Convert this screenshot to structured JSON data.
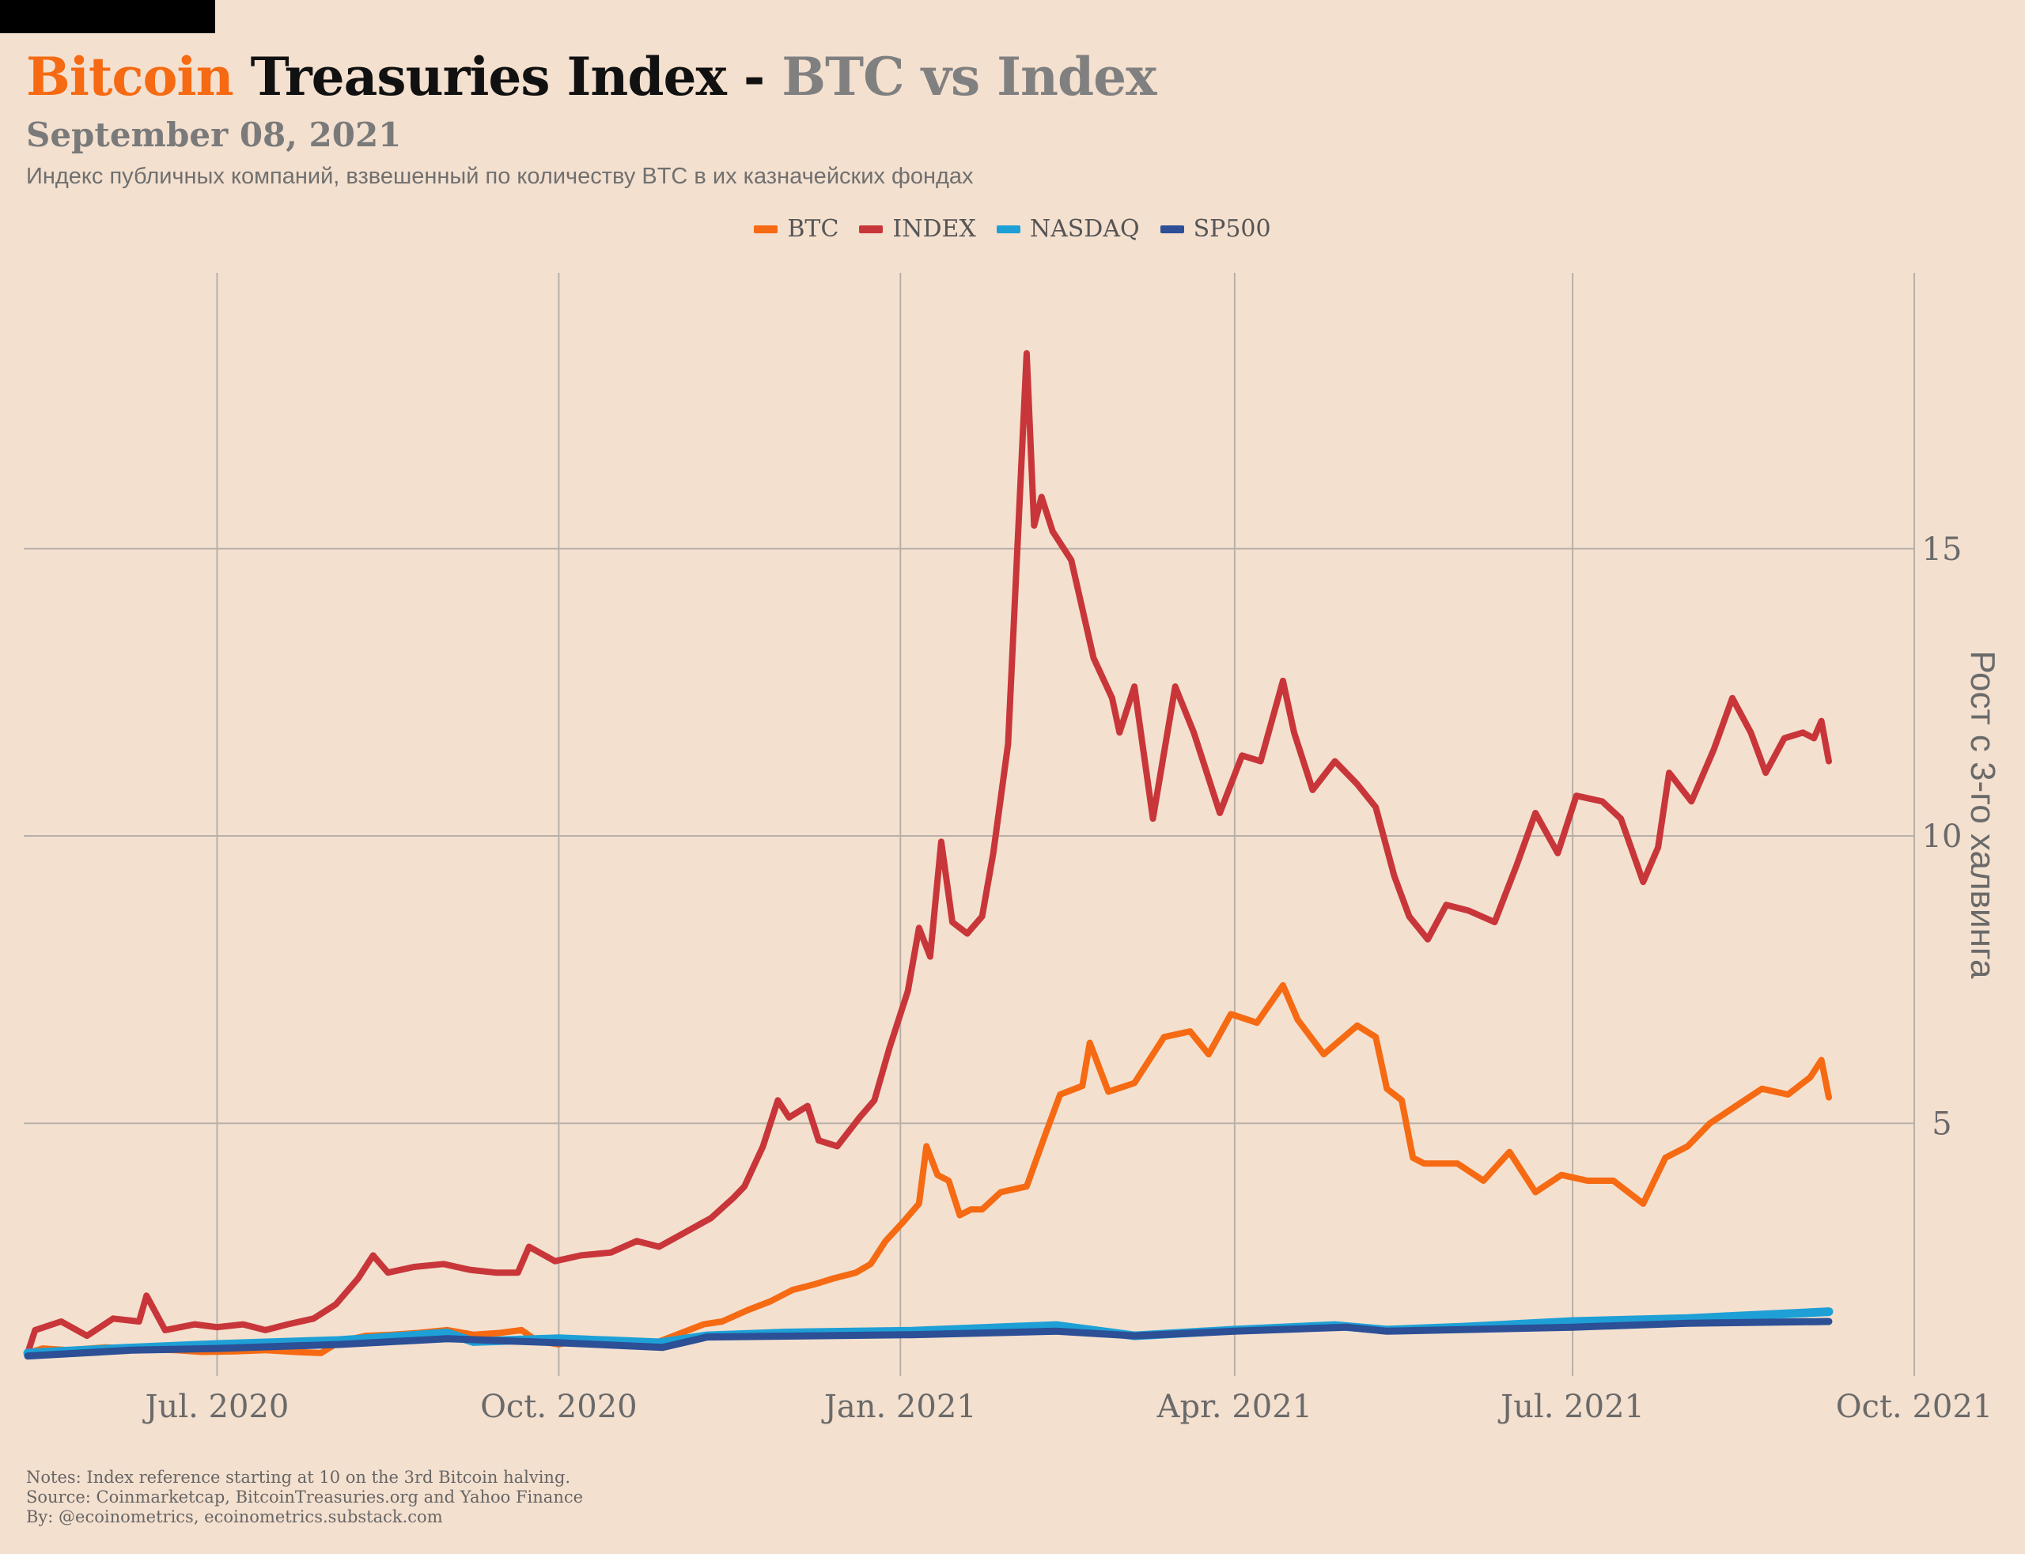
{
  "header": {
    "title_part1": "Bitcoin",
    "title_part2": "Treasuries Index -",
    "title_part3": "BTC vs Index",
    "date": "September 08, 2021",
    "subtitle": "Индекс публичных компаний, взвешенный по количеству BTC в их казначейских фондах"
  },
  "colors": {
    "background": "#f4e0cf",
    "btc": "#f56a12",
    "index": "#c8363a",
    "nasdaq": "#1ea0d6",
    "sp500": "#2c4f96",
    "grid": "#b8b0a8"
  },
  "chart_data": {
    "type": "line",
    "title": "Bitcoin Treasuries Index - BTC vs Index",
    "xlabel": "",
    "ylabel": "Рост с 3-го халвинга",
    "x_range": [
      "2020-05-11",
      "2021-10-01"
    ],
    "ylim": [
      0.6,
      19.8
    ],
    "y_ticks": [
      5,
      10,
      15
    ],
    "x_ticks": [
      {
        "date": "2020-07-01",
        "label": "Jul. 2020"
      },
      {
        "date": "2020-10-01",
        "label": "Oct. 2020"
      },
      {
        "date": "2021-01-01",
        "label": "Jan. 2021"
      },
      {
        "date": "2021-04-01",
        "label": "Apr. 2021"
      },
      {
        "date": "2021-07-01",
        "label": "Jul. 2021"
      },
      {
        "date": "2021-10-01",
        "label": "Oct. 2021"
      }
    ],
    "y_axis_side": "right",
    "grid": true,
    "legend_position": "top-center",
    "series": [
      {
        "name": "BTC",
        "color": "#f56a12",
        "points": [
          [
            "2020-05-11",
            1.0
          ],
          [
            "2020-05-15",
            1.08
          ],
          [
            "2020-05-22",
            1.05
          ],
          [
            "2020-06-01",
            1.1
          ],
          [
            "2020-06-10",
            1.07
          ],
          [
            "2020-06-20",
            1.05
          ],
          [
            "2020-06-27",
            1.02
          ],
          [
            "2020-07-06",
            1.03
          ],
          [
            "2020-07-14",
            1.05
          ],
          [
            "2020-07-22",
            1.02
          ],
          [
            "2020-07-29",
            1.0
          ],
          [
            "2020-08-03",
            1.2
          ],
          [
            "2020-08-10",
            1.3
          ],
          [
            "2020-08-17",
            1.32
          ],
          [
            "2020-08-24",
            1.35
          ],
          [
            "2020-09-01",
            1.4
          ],
          [
            "2020-09-08",
            1.32
          ],
          [
            "2020-09-15",
            1.35
          ],
          [
            "2020-09-21",
            1.4
          ],
          [
            "2020-09-25",
            1.22
          ],
          [
            "2020-10-01",
            1.15
          ],
          [
            "2020-10-08",
            1.25
          ],
          [
            "2020-10-14",
            1.2
          ],
          [
            "2020-10-21",
            1.18
          ],
          [
            "2020-10-28",
            1.2
          ],
          [
            "2020-11-03",
            1.35
          ],
          [
            "2020-11-09",
            1.5
          ],
          [
            "2020-11-14",
            1.55
          ],
          [
            "2020-11-21",
            1.75
          ],
          [
            "2020-11-27",
            1.9
          ],
          [
            "2020-12-03",
            2.1
          ],
          [
            "2020-12-09",
            2.2
          ],
          [
            "2020-12-14",
            2.3
          ],
          [
            "2020-12-20",
            2.4
          ],
          [
            "2020-12-24",
            2.55
          ],
          [
            "2020-12-28",
            2.95
          ],
          [
            "2021-01-02",
            3.3
          ],
          [
            "2021-01-06",
            3.6
          ],
          [
            "2021-01-08",
            4.6
          ],
          [
            "2021-01-11",
            4.1
          ],
          [
            "2021-01-14",
            4.0
          ],
          [
            "2021-01-17",
            3.4
          ],
          [
            "2021-01-20",
            3.5
          ],
          [
            "2021-01-23",
            3.5
          ],
          [
            "2021-01-28",
            3.8
          ],
          [
            "2021-02-04",
            3.9
          ],
          [
            "2021-02-09",
            4.8
          ],
          [
            "2021-02-13",
            5.5
          ],
          [
            "2021-02-19",
            5.65
          ],
          [
            "2021-02-21",
            6.4
          ],
          [
            "2021-02-26",
            5.55
          ],
          [
            "2021-03-05",
            5.7
          ],
          [
            "2021-03-13",
            6.5
          ],
          [
            "2021-03-20",
            6.6
          ],
          [
            "2021-03-25",
            6.2
          ],
          [
            "2021-03-31",
            6.9
          ],
          [
            "2021-04-07",
            6.75
          ],
          [
            "2021-04-14",
            7.4
          ],
          [
            "2021-04-18",
            6.8
          ],
          [
            "2021-04-25",
            6.2
          ],
          [
            "2021-05-04",
            6.7
          ],
          [
            "2021-05-09",
            6.5
          ],
          [
            "2021-05-12",
            5.6
          ],
          [
            "2021-05-16",
            5.4
          ],
          [
            "2021-05-19",
            4.4
          ],
          [
            "2021-05-22",
            4.3
          ],
          [
            "2021-05-31",
            4.3
          ],
          [
            "2021-06-07",
            4.0
          ],
          [
            "2021-06-14",
            4.5
          ],
          [
            "2021-06-21",
            3.8
          ],
          [
            "2021-06-28",
            4.1
          ],
          [
            "2021-07-05",
            4.0
          ],
          [
            "2021-07-12",
            4.0
          ],
          [
            "2021-07-20",
            3.6
          ],
          [
            "2021-07-26",
            4.4
          ],
          [
            "2021-08-01",
            4.6
          ],
          [
            "2021-08-07",
            5.0
          ],
          [
            "2021-08-14",
            5.3
          ],
          [
            "2021-08-21",
            5.6
          ],
          [
            "2021-08-28",
            5.5
          ],
          [
            "2021-09-03",
            5.8
          ],
          [
            "2021-09-06",
            6.1
          ],
          [
            "2021-09-08",
            5.45
          ]
        ]
      },
      {
        "name": "INDEX",
        "color": "#c8363a",
        "points": [
          [
            "2020-05-11",
            1.0
          ],
          [
            "2020-05-13",
            1.4
          ],
          [
            "2020-05-20",
            1.55
          ],
          [
            "2020-05-27",
            1.3
          ],
          [
            "2020-06-03",
            1.6
          ],
          [
            "2020-06-10",
            1.55
          ],
          [
            "2020-06-12",
            2.0
          ],
          [
            "2020-06-17",
            1.4
          ],
          [
            "2020-06-25",
            1.5
          ],
          [
            "2020-07-01",
            1.45
          ],
          [
            "2020-07-08",
            1.5
          ],
          [
            "2020-07-14",
            1.4
          ],
          [
            "2020-07-20",
            1.5
          ],
          [
            "2020-07-27",
            1.6
          ],
          [
            "2020-08-02",
            1.85
          ],
          [
            "2020-08-08",
            2.3
          ],
          [
            "2020-08-12",
            2.7
          ],
          [
            "2020-08-16",
            2.4
          ],
          [
            "2020-08-23",
            2.5
          ],
          [
            "2020-08-31",
            2.55
          ],
          [
            "2020-09-07",
            2.45
          ],
          [
            "2020-09-14",
            2.4
          ],
          [
            "2020-09-20",
            2.4
          ],
          [
            "2020-09-23",
            2.85
          ],
          [
            "2020-09-30",
            2.6
          ],
          [
            "2020-10-07",
            2.7
          ],
          [
            "2020-10-15",
            2.75
          ],
          [
            "2020-10-22",
            2.95
          ],
          [
            "2020-10-28",
            2.85
          ],
          [
            "2020-11-04",
            3.1
          ],
          [
            "2020-11-11",
            3.35
          ],
          [
            "2020-11-17",
            3.7
          ],
          [
            "2020-11-20",
            3.9
          ],
          [
            "2020-11-25",
            4.6
          ],
          [
            "2020-11-29",
            5.4
          ],
          [
            "2020-12-02",
            5.1
          ],
          [
            "2020-12-07",
            5.3
          ],
          [
            "2020-12-10",
            4.7
          ],
          [
            "2020-12-15",
            4.6
          ],
          [
            "2020-12-21",
            5.1
          ],
          [
            "2020-12-25",
            5.4
          ],
          [
            "2020-12-29",
            6.3
          ],
          [
            "2021-01-03",
            7.3
          ],
          [
            "2021-01-06",
            8.4
          ],
          [
            "2021-01-09",
            7.9
          ],
          [
            "2021-01-12",
            9.9
          ],
          [
            "2021-01-15",
            8.5
          ],
          [
            "2021-01-19",
            8.3
          ],
          [
            "2021-01-23",
            8.6
          ],
          [
            "2021-01-26",
            9.7
          ],
          [
            "2021-01-30",
            11.6
          ],
          [
            "2021-02-04",
            18.4
          ],
          [
            "2021-02-06",
            15.4
          ],
          [
            "2021-02-08",
            15.9
          ],
          [
            "2021-02-11",
            15.3
          ],
          [
            "2021-02-16",
            14.8
          ],
          [
            "2021-02-22",
            13.1
          ],
          [
            "2021-02-27",
            12.4
          ],
          [
            "2021-03-01",
            11.8
          ],
          [
            "2021-03-05",
            12.6
          ],
          [
            "2021-03-10",
            10.3
          ],
          [
            "2021-03-16",
            12.6
          ],
          [
            "2021-03-21",
            11.8
          ],
          [
            "2021-03-28",
            10.4
          ],
          [
            "2021-04-03",
            11.4
          ],
          [
            "2021-04-08",
            11.3
          ],
          [
            "2021-04-14",
            12.7
          ],
          [
            "2021-04-17",
            11.8
          ],
          [
            "2021-04-22",
            10.8
          ],
          [
            "2021-04-28",
            11.3
          ],
          [
            "2021-05-04",
            10.9
          ],
          [
            "2021-05-09",
            10.5
          ],
          [
            "2021-05-14",
            9.3
          ],
          [
            "2021-05-18",
            8.6
          ],
          [
            "2021-05-23",
            8.2
          ],
          [
            "2021-05-28",
            8.8
          ],
          [
            "2021-06-03",
            8.7
          ],
          [
            "2021-06-10",
            8.5
          ],
          [
            "2021-06-16",
            9.5
          ],
          [
            "2021-06-21",
            10.4
          ],
          [
            "2021-06-27",
            9.7
          ],
          [
            "2021-07-02",
            10.7
          ],
          [
            "2021-07-09",
            10.6
          ],
          [
            "2021-07-14",
            10.3
          ],
          [
            "2021-07-20",
            9.2
          ],
          [
            "2021-07-24",
            9.8
          ],
          [
            "2021-07-27",
            11.1
          ],
          [
            "2021-08-02",
            10.6
          ],
          [
            "2021-08-08",
            11.5
          ],
          [
            "2021-08-13",
            12.4
          ],
          [
            "2021-08-18",
            11.8
          ],
          [
            "2021-08-22",
            11.1
          ],
          [
            "2021-08-27",
            11.7
          ],
          [
            "2021-09-01",
            11.8
          ],
          [
            "2021-09-04",
            11.7
          ],
          [
            "2021-09-06",
            12.0
          ],
          [
            "2021-09-08",
            11.3
          ]
        ]
      },
      {
        "name": "NASDAQ",
        "color": "#1ea0d6",
        "points": [
          [
            "2020-05-11",
            1.0
          ],
          [
            "2020-06-05",
            1.08
          ],
          [
            "2020-07-01",
            1.15
          ],
          [
            "2020-08-03",
            1.22
          ],
          [
            "2020-09-01",
            1.35
          ],
          [
            "2020-09-08",
            1.2
          ],
          [
            "2020-10-01",
            1.25
          ],
          [
            "2020-10-28",
            1.18
          ],
          [
            "2020-11-10",
            1.3
          ],
          [
            "2020-12-01",
            1.35
          ],
          [
            "2021-01-04",
            1.38
          ],
          [
            "2021-02-12",
            1.48
          ],
          [
            "2021-03-05",
            1.3
          ],
          [
            "2021-04-01",
            1.4
          ],
          [
            "2021-04-28",
            1.48
          ],
          [
            "2021-05-12",
            1.4
          ],
          [
            "2021-06-01",
            1.45
          ],
          [
            "2021-07-01",
            1.55
          ],
          [
            "2021-08-01",
            1.6
          ],
          [
            "2021-09-08",
            1.72
          ]
        ]
      },
      {
        "name": "SP500",
        "color": "#2c4f96",
        "points": [
          [
            "2020-05-11",
            0.95
          ],
          [
            "2020-06-08",
            1.05
          ],
          [
            "2020-07-01",
            1.08
          ],
          [
            "2020-08-03",
            1.15
          ],
          [
            "2020-09-01",
            1.25
          ],
          [
            "2020-10-01",
            1.18
          ],
          [
            "2020-10-29",
            1.1
          ],
          [
            "2020-11-10",
            1.28
          ],
          [
            "2021-01-04",
            1.32
          ],
          [
            "2021-02-12",
            1.38
          ],
          [
            "2021-03-05",
            1.3
          ],
          [
            "2021-04-01",
            1.38
          ],
          [
            "2021-05-01",
            1.45
          ],
          [
            "2021-05-12",
            1.38
          ],
          [
            "2021-07-01",
            1.45
          ],
          [
            "2021-08-01",
            1.52
          ],
          [
            "2021-09-08",
            1.55
          ]
        ]
      }
    ]
  },
  "footer": {
    "notes": "Notes: Index reference starting at 10 on the 3rd Bitcoin halving.",
    "source": "Source: Coinmarketcap, BitcoinTreasuries.org and Yahoo Finance",
    "by": "By: @ecoinometrics, ecoinometrics.substack.com"
  }
}
